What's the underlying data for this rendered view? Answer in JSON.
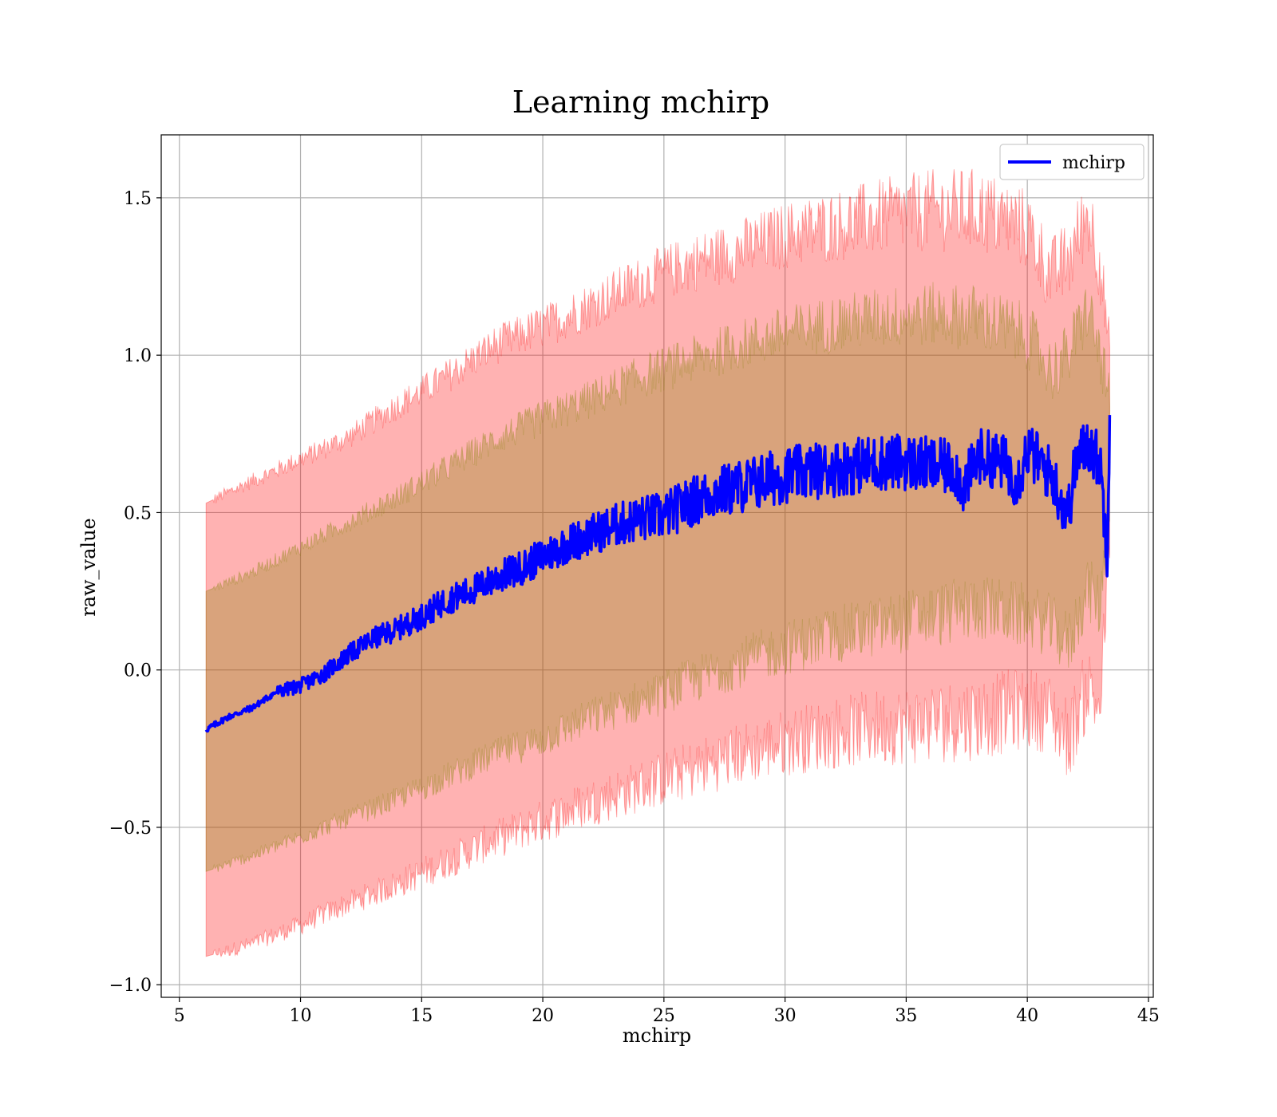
{
  "chart_data": {
    "type": "line",
    "title": "Learning mchirp",
    "xlabel": "mchirp",
    "ylabel": "raw_value",
    "xlim": [
      4.25,
      45.2
    ],
    "ylim": [
      -1.04,
      1.7
    ],
    "xticks": [
      5,
      10,
      15,
      20,
      25,
      30,
      35,
      40,
      45
    ],
    "xtick_labels": [
      "5",
      "10",
      "15",
      "20",
      "25",
      "30",
      "35",
      "40",
      "45"
    ],
    "yticks": [
      -1.0,
      -0.5,
      0.0,
      0.5,
      1.0,
      1.5
    ],
    "ytick_labels": [
      "−1.0",
      "−0.5",
      "0.0",
      "0.5",
      "1.0",
      "1.5"
    ],
    "grid": true,
    "legend_position": "top-right",
    "series": [
      {
        "name": "mchirp",
        "color": "#0000ff",
        "x": [
          6.1,
          7.0,
          8.0,
          9.0,
          10.0,
          11.0,
          12.0,
          13.0,
          14.0,
          15.0,
          16.0,
          17.0,
          18.0,
          19.0,
          20.0,
          21.0,
          22.0,
          23.0,
          24.0,
          25.0,
          26.0,
          27.0,
          28.0,
          29.0,
          30.0,
          31.0,
          32.0,
          33.0,
          34.0,
          35.0,
          36.0,
          37.0,
          37.4,
          38.0,
          39.0,
          39.6,
          40.0,
          40.5,
          41.0,
          41.5,
          41.7,
          42.0,
          42.5,
          43.0,
          43.3,
          43.4
        ],
        "y": [
          -0.19,
          -0.15,
          -0.12,
          -0.07,
          -0.05,
          -0.01,
          0.05,
          0.1,
          0.13,
          0.17,
          0.22,
          0.25,
          0.29,
          0.32,
          0.36,
          0.4,
          0.43,
          0.46,
          0.48,
          0.49,
          0.53,
          0.56,
          0.58,
          0.6,
          0.62,
          0.63,
          0.64,
          0.65,
          0.66,
          0.66,
          0.65,
          0.64,
          0.58,
          0.68,
          0.66,
          0.6,
          0.7,
          0.66,
          0.62,
          0.52,
          0.5,
          0.66,
          0.72,
          0.66,
          0.38,
          0.81
        ]
      }
    ],
    "bands": [
      {
        "color": "#ff0000",
        "opacity": 0.3,
        "x": [
          6.1,
          8,
          10,
          12,
          14,
          16,
          18,
          20,
          22,
          24,
          26,
          28,
          30,
          32,
          34,
          36,
          38,
          40,
          41,
          41.7,
          42.5,
          43.0,
          43.4
        ],
        "lower": [
          -0.91,
          -0.87,
          -0.81,
          -0.74,
          -0.68,
          -0.61,
          -0.54,
          -0.48,
          -0.42,
          -0.37,
          -0.32,
          -0.27,
          -0.23,
          -0.2,
          -0.18,
          -0.17,
          -0.15,
          -0.12,
          -0.14,
          -0.22,
          -0.05,
          -0.12,
          0.4
        ],
        "upper": [
          0.53,
          0.6,
          0.67,
          0.74,
          0.84,
          0.93,
          1.03,
          1.09,
          1.16,
          1.23,
          1.29,
          1.33,
          1.38,
          1.41,
          1.44,
          1.46,
          1.46,
          1.4,
          1.25,
          1.3,
          1.45,
          1.3,
          1.0
        ]
      },
      {
        "color": "#808000",
        "opacity": 0.3,
        "x": [
          6.1,
          8,
          10,
          12,
          14,
          16,
          18,
          20,
          22,
          24,
          26,
          28,
          30,
          32,
          34,
          36,
          38,
          40,
          41,
          41.7,
          42.5,
          43.0,
          43.4
        ],
        "lower": [
          -0.64,
          -0.59,
          -0.53,
          -0.47,
          -0.41,
          -0.34,
          -0.27,
          -0.22,
          -0.15,
          -0.1,
          -0.04,
          0.02,
          0.07,
          0.11,
          0.14,
          0.17,
          0.2,
          0.17,
          0.14,
          0.08,
          0.26,
          0.2,
          0.52
        ],
        "upper": [
          0.25,
          0.31,
          0.39,
          0.47,
          0.55,
          0.64,
          0.73,
          0.8,
          0.86,
          0.93,
          0.98,
          1.03,
          1.07,
          1.1,
          1.12,
          1.13,
          1.12,
          1.06,
          0.95,
          1.0,
          1.15,
          1.0,
          0.85
        ]
      }
    ]
  }
}
